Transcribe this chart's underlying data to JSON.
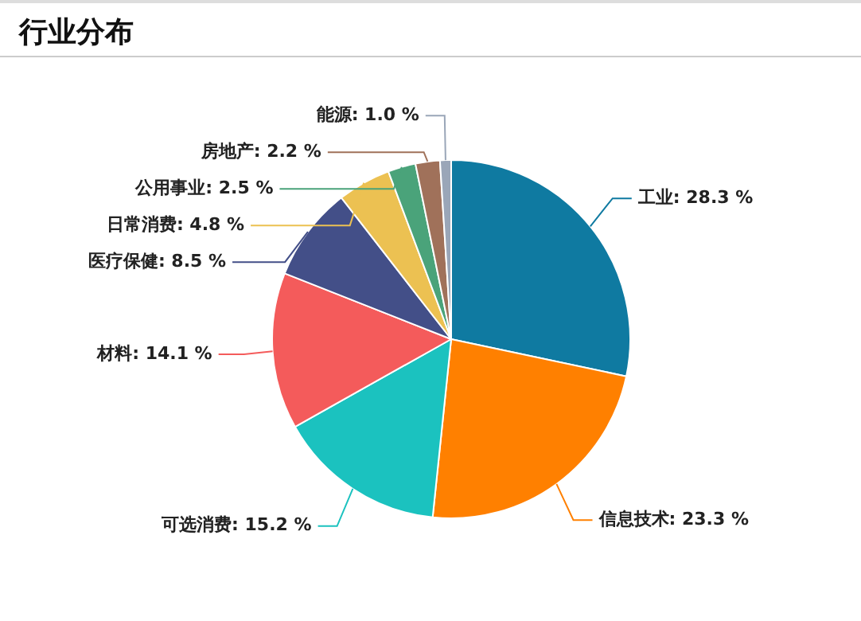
{
  "chart_data": {
    "type": "pie",
    "title": "行业分布",
    "categories": [
      "工业",
      "信息技术",
      "可选消费",
      "材料",
      "医疗保健",
      "日常消费",
      "公用事业",
      "房地产",
      "能源"
    ],
    "values": [
      28.3,
      23.3,
      15.2,
      14.1,
      8.5,
      4.8,
      2.5,
      2.2,
      1.0
    ],
    "value_labels": [
      "28.3 %",
      "23.3 %",
      "15.2 %",
      "14.1 %",
      "8.5 %",
      "4.8 %",
      "2.5 %",
      "2.2 %",
      "1.0 %"
    ],
    "colors": [
      "#0f7aa1",
      "#ff8000",
      "#1bc2bf",
      "#f45b5b",
      "#434f88",
      "#ecc152",
      "#4aa37a",
      "#a0715a",
      "#9aa6b8"
    ],
    "legend": false
  }
}
